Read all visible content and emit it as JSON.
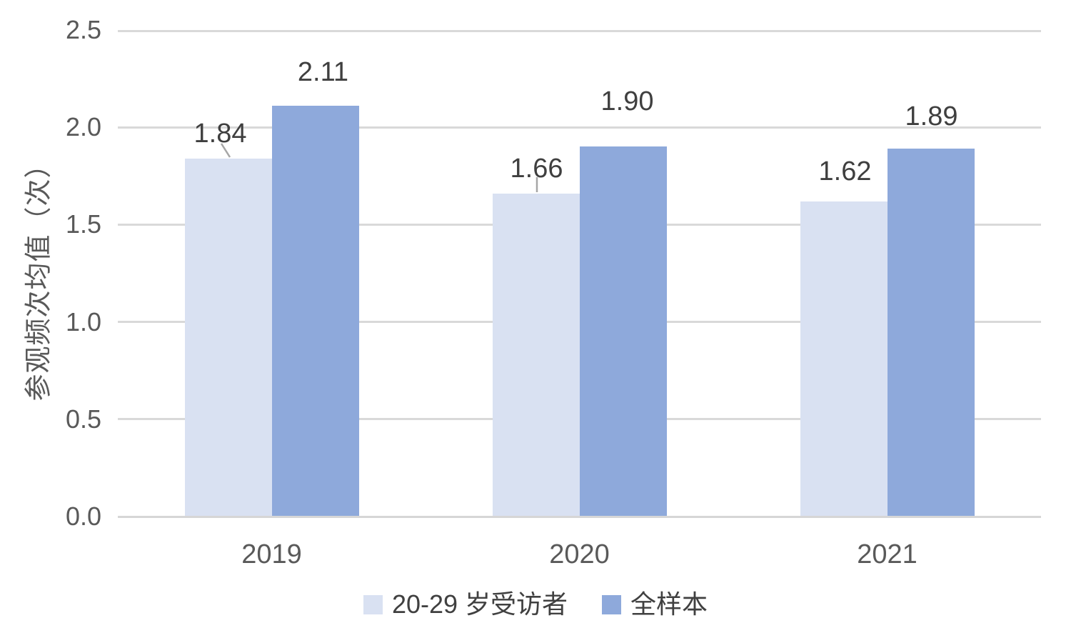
{
  "chart_data": {
    "type": "bar",
    "title": "",
    "xlabel": "",
    "ylabel": "参观频次均值（次）",
    "categories": [
      "2019",
      "2020",
      "2021"
    ],
    "series": [
      {
        "name": "20-29 岁受访者",
        "color": "#d9e1f2",
        "values": [
          1.84,
          1.66,
          1.62
        ],
        "labels": [
          "1.84",
          "1.66",
          "1.62"
        ]
      },
      {
        "name": "全样本",
        "color": "#8ea9db",
        "values": [
          2.11,
          1.9,
          1.89
        ],
        "labels": [
          "2.11",
          "1.90",
          "1.89"
        ]
      }
    ],
    "ylim": [
      0,
      2.5
    ],
    "yticks": [
      0,
      0.5,
      1.0,
      1.5,
      2.0,
      2.5
    ],
    "ytick_labels": [
      "0.0",
      "0.5",
      "1.0",
      "1.5",
      "2.0",
      "2.5"
    ],
    "grid": true,
    "legend_position": "bottom",
    "colors": {
      "gridline": "#d9d9d9",
      "axis_line": "#d6d6d6",
      "tick_text": "#595959",
      "data_label_text": "#3f3f3f",
      "leader_line": "#a6a6a6"
    }
  }
}
